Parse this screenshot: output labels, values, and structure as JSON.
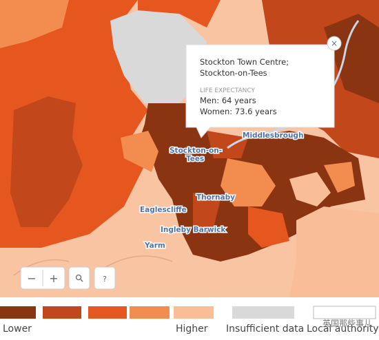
{
  "tooltip": {
    "title_lines": [
      "Stockton Town Centre;",
      "Stockton-on-Tees"
    ],
    "section": "LIFE EXPECTANCY",
    "lines": [
      "Men: 64 years",
      "Women: 73.6 years"
    ],
    "close": "×"
  },
  "places": [
    "Middlesbrough",
    "Stockton-on-",
    "Tees",
    "Thornaby",
    "Eaglescliffe",
    "Ingleby Barwick",
    "Yarm"
  ],
  "controls": [
    "−",
    "+",
    "?"
  ],
  "legend": {
    "colors": [
      "#8b3411",
      "#c2471b",
      "#e5571f",
      "#f28d4f",
      "#f9bd97",
      "#d9d9d9",
      "#ffffff"
    ],
    "labels": [
      "Lower",
      "Higher",
      "Insufficient data",
      "Local authority"
    ]
  },
  "watermark": "英国那些事儿"
}
